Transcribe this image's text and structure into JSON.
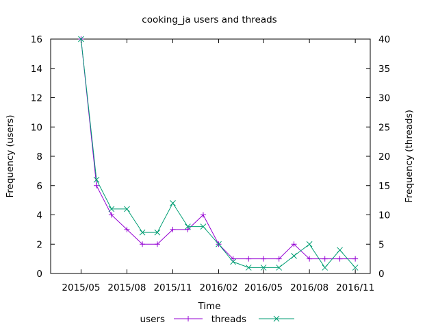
{
  "chart_data": {
    "type": "line",
    "title": "cooking_ja users and threads",
    "xlabel": "Time",
    "ylabel": "Frequency (users)",
    "y2label": "Frequency (threads)",
    "xlim": [
      "2015-03-01",
      "2016-12-01"
    ],
    "ylim": [
      0,
      16
    ],
    "y2lim": [
      0,
      40
    ],
    "grid": false,
    "legend_position": "bottom",
    "x_ticks": [
      "2015/05",
      "2015/08",
      "2015/11",
      "2016/02",
      "2016/05",
      "2016/08",
      "2016/11"
    ],
    "y_ticks": [
      "0",
      "2",
      "4",
      "6",
      "8",
      "10",
      "12",
      "14",
      "16"
    ],
    "y2_ticks": [
      "0",
      "5",
      "10",
      "15",
      "20",
      "25",
      "30",
      "35",
      "40"
    ],
    "dates": [
      "2015-05-01",
      "2015-06-01",
      "2015-07-01",
      "2015-08-01",
      "2015-09-01",
      "2015-10-01",
      "2015-11-01",
      "2015-12-01",
      "2016-01-01",
      "2016-02-01",
      "2016-03-01",
      "2016-04-01",
      "2016-05-01",
      "2016-06-01",
      "2016-07-01",
      "2016-08-01",
      "2016-09-01",
      "2016-10-01",
      "2016-11-01"
    ],
    "series": [
      {
        "name": "users",
        "axis": "left",
        "color": "#9400d3",
        "marker": "plus",
        "values": [
          16,
          6,
          4,
          3,
          2,
          2,
          3,
          3,
          4,
          2,
          1,
          1,
          1,
          1,
          2,
          1,
          1,
          1,
          1
        ]
      },
      {
        "name": "threads",
        "axis": "right",
        "color": "#009e73",
        "marker": "cross",
        "values": [
          40,
          16,
          11,
          11,
          7,
          7,
          12,
          8,
          8,
          5,
          2,
          1,
          1,
          1,
          3,
          5,
          1,
          4,
          1
        ]
      }
    ]
  }
}
